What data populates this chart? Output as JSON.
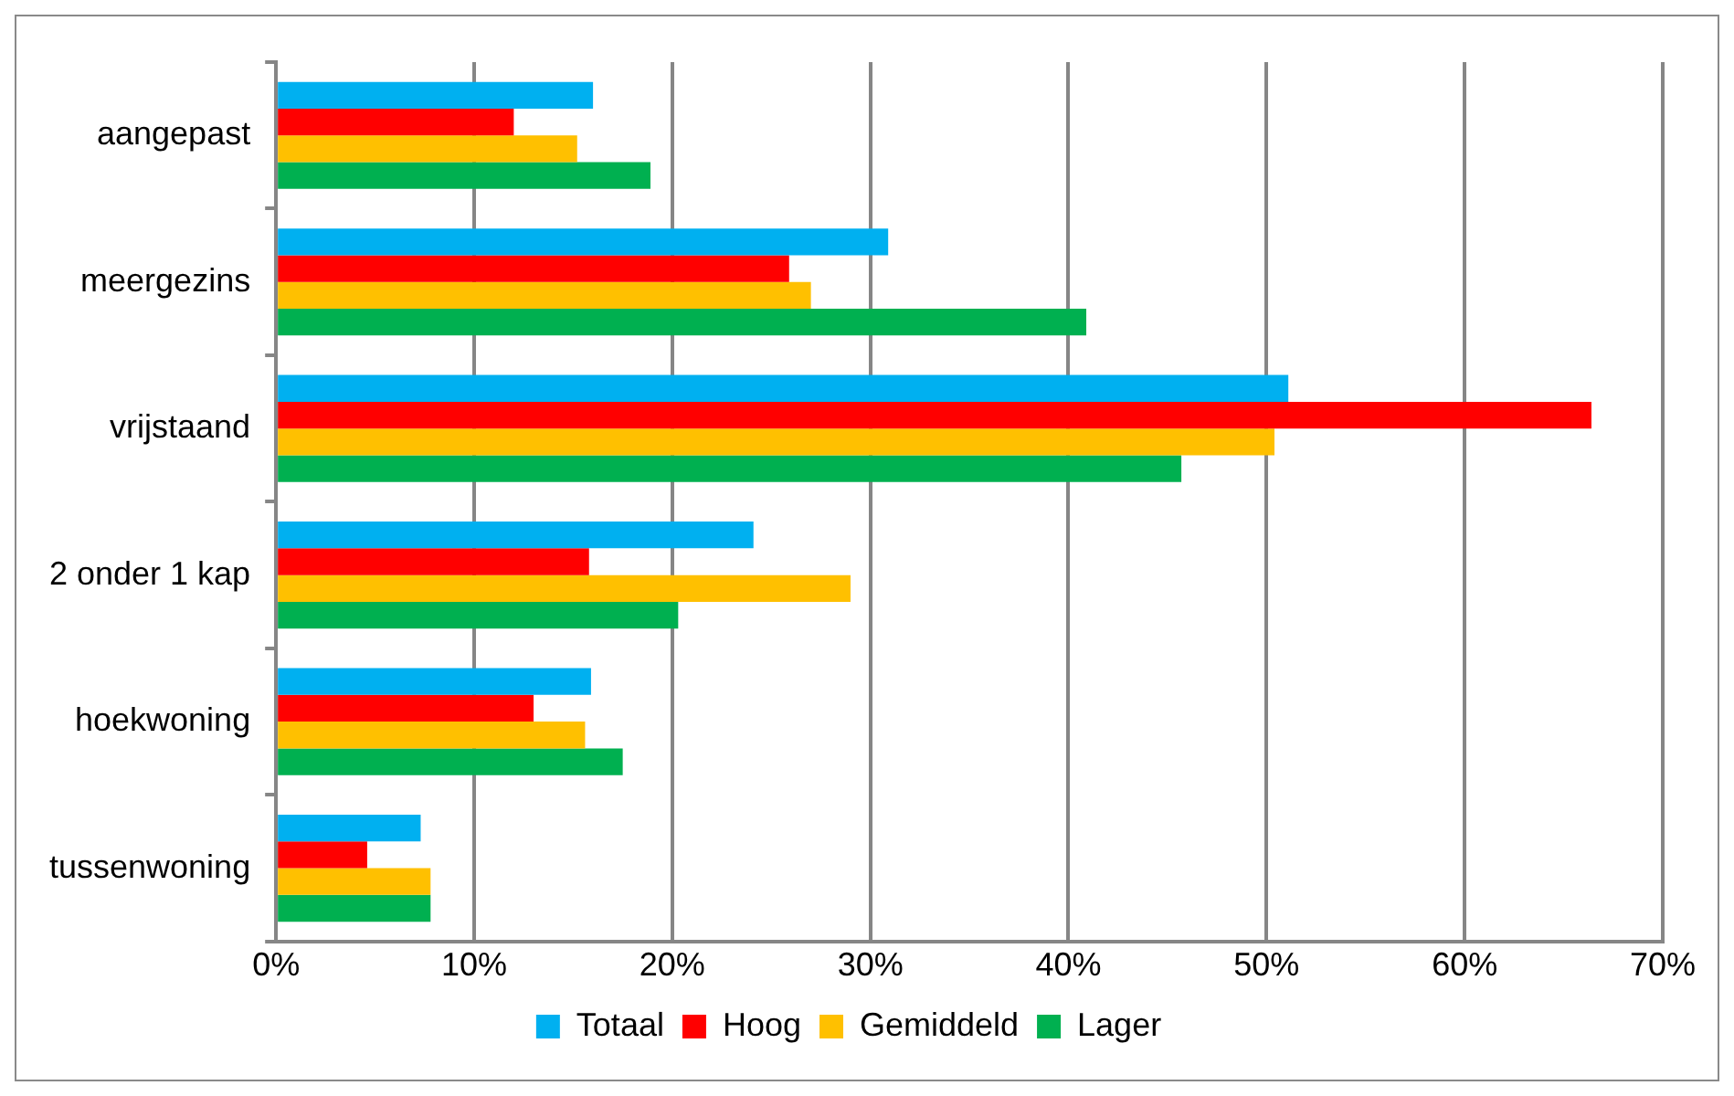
{
  "chart_data": {
    "type": "bar",
    "orientation": "horizontal",
    "categories": [
      "aangepast",
      "meergezins",
      "vrijstaand",
      "2 onder 1 kap",
      "hoekwoning",
      "tussenwoning"
    ],
    "series": [
      {
        "name": "Totaal",
        "color": "#00b0f0",
        "values": [
          16.0,
          30.9,
          51.1,
          24.1,
          15.9,
          7.3
        ]
      },
      {
        "name": "Hoog",
        "color": "#ff0000",
        "values": [
          12.0,
          25.9,
          66.4,
          15.8,
          13.0,
          4.6
        ]
      },
      {
        "name": "Gemiddeld",
        "color": "#ffc000",
        "values": [
          15.2,
          27.0,
          50.4,
          29.0,
          15.6,
          7.8
        ]
      },
      {
        "name": "Lager",
        "color": "#00b050",
        "values": [
          18.9,
          40.9,
          45.7,
          20.3,
          17.5,
          7.8
        ]
      }
    ],
    "xlim": [
      0,
      70
    ],
    "xticks": [
      {
        "value": 0,
        "label": "0%"
      },
      {
        "value": 10,
        "label": "10%"
      },
      {
        "value": 20,
        "label": "20%"
      },
      {
        "value": 30,
        "label": "30%"
      },
      {
        "value": 40,
        "label": "40%"
      },
      {
        "value": 50,
        "label": "50%"
      },
      {
        "value": 60,
        "label": "60%"
      },
      {
        "value": 70,
        "label": "70%"
      }
    ],
    "grid": "x",
    "legend": "bottom"
  }
}
